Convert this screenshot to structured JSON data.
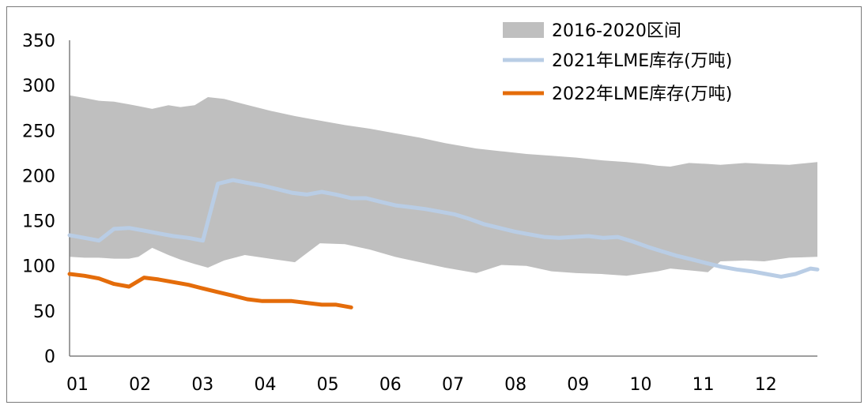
{
  "chart_data": {
    "type": "area",
    "x_tick_labels": [
      "01",
      "02",
      "03",
      "04",
      "05",
      "06",
      "07",
      "08",
      "09",
      "10",
      "11",
      "12"
    ],
    "ylim": [
      0,
      350
    ],
    "y_ticks": [
      0,
      50,
      100,
      150,
      200,
      250,
      300,
      350
    ],
    "xlim": [
      1,
      12.95
    ],
    "legend_position": "top-right",
    "series": [
      {
        "name": "2016-2020区间",
        "kind": "band",
        "color": "#bfbfbf",
        "x": [
          1.0,
          1.24,
          1.47,
          1.71,
          1.95,
          2.1,
          2.32,
          2.58,
          2.77,
          3.0,
          3.21,
          3.47,
          3.8,
          4.2,
          4.6,
          5.0,
          5.4,
          5.8,
          6.2,
          6.6,
          7.0,
          7.5,
          7.9,
          8.3,
          8.7,
          9.1,
          9.5,
          9.9,
          10.2,
          10.4,
          10.6,
          10.9,
          11.2,
          11.4,
          11.8,
          12.1,
          12.5,
          12.95
        ],
        "upper": [
          289,
          286,
          283,
          282,
          279,
          277,
          274,
          278,
          276,
          278,
          287,
          285,
          279,
          272,
          266,
          261,
          256,
          252,
          247,
          242,
          236,
          230,
          227,
          224,
          222,
          220,
          217,
          215,
          213,
          211,
          210,
          214,
          213,
          212,
          214,
          213,
          212,
          215
        ],
        "lower": [
          110,
          109,
          109,
          108,
          108,
          110,
          120,
          112,
          107,
          102,
          98,
          106,
          112,
          108,
          104,
          125,
          124,
          118,
          110,
          104,
          98,
          92,
          101,
          100,
          94,
          92,
          91,
          89,
          92,
          94,
          97,
          95,
          93,
          105,
          106,
          105,
          109,
          110
        ]
      },
      {
        "name": "2021年LME库存(万吨)",
        "kind": "line",
        "color": "#b9cde5",
        "x": [
          1.0,
          1.24,
          1.47,
          1.71,
          1.95,
          2.19,
          2.42,
          2.66,
          2.9,
          3.13,
          3.37,
          3.61,
          3.84,
          4.08,
          4.32,
          4.55,
          4.79,
          5.03,
          5.26,
          5.5,
          5.74,
          5.97,
          6.21,
          6.45,
          6.68,
          6.92,
          7.16,
          7.39,
          7.63,
          7.87,
          8.11,
          8.34,
          8.58,
          8.82,
          9.05,
          9.29,
          9.53,
          9.76,
          10.0,
          10.24,
          10.47,
          10.71,
          10.95,
          11.18,
          11.42,
          11.66,
          11.89,
          12.13,
          12.37,
          12.6,
          12.84,
          12.95
        ],
        "y": [
          134,
          131,
          128,
          141,
          142,
          139,
          136,
          133,
          131,
          128,
          191,
          195,
          192,
          189,
          185,
          181,
          179,
          182,
          179,
          175,
          175,
          171,
          167,
          165,
          163,
          160,
          157,
          152,
          146,
          142,
          138,
          135,
          132,
          131,
          132,
          133,
          131,
          132,
          127,
          121,
          116,
          111,
          107,
          103,
          99,
          96,
          94,
          91,
          88,
          91,
          97,
          96
        ]
      },
      {
        "name": "2022年LME库存(万吨)",
        "kind": "line",
        "color": "#e46c0a",
        "x": [
          1.0,
          1.24,
          1.47,
          1.71,
          1.95,
          2.19,
          2.42,
          2.66,
          2.9,
          3.13,
          3.37,
          3.61,
          3.84,
          4.08,
          4.32,
          4.55,
          4.79,
          5.03,
          5.26,
          5.5
        ],
        "y": [
          91,
          89,
          86,
          80,
          77,
          87,
          85,
          82,
          79,
          75,
          71,
          67,
          63,
          61,
          61,
          61,
          59,
          57,
          57,
          54
        ]
      }
    ]
  }
}
